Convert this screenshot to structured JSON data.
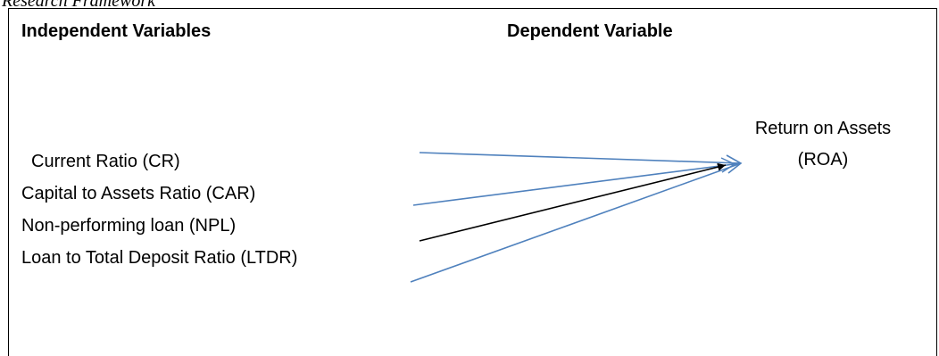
{
  "caption": "Research Framework",
  "headings": {
    "independent": "Independent Variables",
    "dependent": "Dependent Variable"
  },
  "independent_variables": [
    "Current Ratio (CR)",
    "Capital to Assets Ratio (CAR)",
    "Non-performing loan (NPL)",
    "Loan to Total Deposit Ratio (LTDR)"
  ],
  "dependent_variable": {
    "line1": "Return on Assets",
    "line2": "(ROA)"
  },
  "colors": {
    "arrow_blue": "#4f81bd",
    "arrow_black": "#000000"
  }
}
